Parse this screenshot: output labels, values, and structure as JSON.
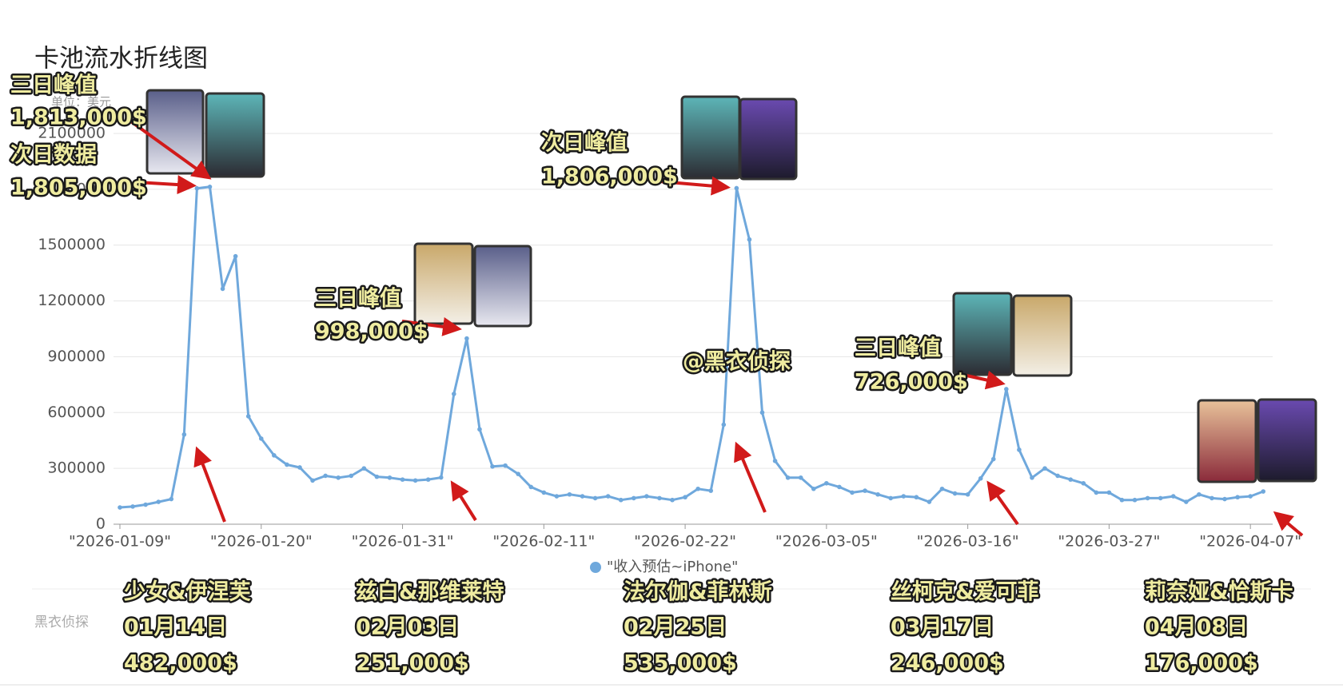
{
  "chart_data": {
    "type": "line",
    "title": "卡池流水折线图",
    "unit_label": "单位：美元",
    "categories": [
      "\"2026-01-09\"",
      null,
      null,
      null,
      null,
      null,
      null,
      null,
      null,
      null,
      null,
      "\"2026-01-20\"",
      null,
      null,
      null,
      null,
      null,
      null,
      null,
      null,
      null,
      null,
      "\"2026-01-31\"",
      null,
      null,
      null,
      null,
      null,
      null,
      null,
      null,
      null,
      null,
      "\"2026-02-11\"",
      null,
      null,
      null,
      null,
      null,
      null,
      null,
      null,
      null,
      null,
      "\"2026-02-22\"",
      null,
      null,
      null,
      null,
      null,
      null,
      null,
      null,
      null,
      null,
      "\"2026-03-05\"",
      null,
      null,
      null,
      null,
      null,
      null,
      null,
      null,
      null,
      null,
      "\"2026-03-16\"",
      null,
      null,
      null,
      null,
      null,
      null,
      null,
      null,
      null,
      null,
      "\"2026-03-27\"",
      null,
      null,
      null,
      null,
      null,
      null,
      null,
      null,
      null,
      null,
      "\"2026-04-07\"",
      null
    ],
    "series": [
      {
        "name": "\"收入预估~iPhone\"",
        "color": "#6fa8dc",
        "values": [
          90000,
          95000,
          105000,
          120000,
          135000,
          482000,
          1805000,
          1813000,
          1265000,
          1440000,
          580000,
          460000,
          370000,
          320000,
          305000,
          235000,
          260000,
          250000,
          260000,
          300000,
          255000,
          250000,
          240000,
          235000,
          240000,
          251000,
          700000,
          998000,
          510000,
          310000,
          315000,
          270000,
          200000,
          170000,
          150000,
          160000,
          150000,
          140000,
          150000,
          130000,
          140000,
          150000,
          140000,
          130000,
          145000,
          190000,
          180000,
          535000,
          1806000,
          1530000,
          600000,
          340000,
          250000,
          250000,
          190000,
          220000,
          200000,
          170000,
          180000,
          160000,
          140000,
          150000,
          145000,
          120000,
          190000,
          165000,
          160000,
          246000,
          350000,
          726000,
          400000,
          250000,
          300000,
          260000,
          240000,
          220000,
          170000,
          170000,
          130000,
          130000,
          140000,
          140000,
          150000,
          120000,
          160000,
          140000,
          135000,
          145000,
          150000,
          176000
        ]
      }
    ],
    "ylim": [
      0,
      2100000
    ],
    "yticks": [
      0,
      300000,
      600000,
      900000,
      1200000,
      1500000,
      1800000,
      2100000
    ],
    "grid": true,
    "legend": "bottom",
    "annotations": [
      "三日峰值",
      "1,813,000$",
      "次日数据",
      "1,805,000$",
      "三日峰值",
      "998,000$",
      "次日峰值",
      "1,806,000$",
      "@黑衣侦探",
      "三日峰值",
      "726,000$"
    ]
  },
  "watermark": "黑衣侦探",
  "banners": [
    {
      "name": "少女&伊涅芙",
      "date": "01月14日",
      "value": "482,000$"
    },
    {
      "name": "兹白&那维莱特",
      "date": "02月03日",
      "value": "251,000$"
    },
    {
      "name": "法尔伽&菲林斯",
      "date": "02月25日",
      "value": "535,000$"
    },
    {
      "name": "丝柯克&爱可菲",
      "date": "03月17日",
      "value": "246,000$"
    },
    {
      "name": "莉奈娅&恰斯卡",
      "date": "04月08日",
      "value": "176,000$"
    }
  ]
}
